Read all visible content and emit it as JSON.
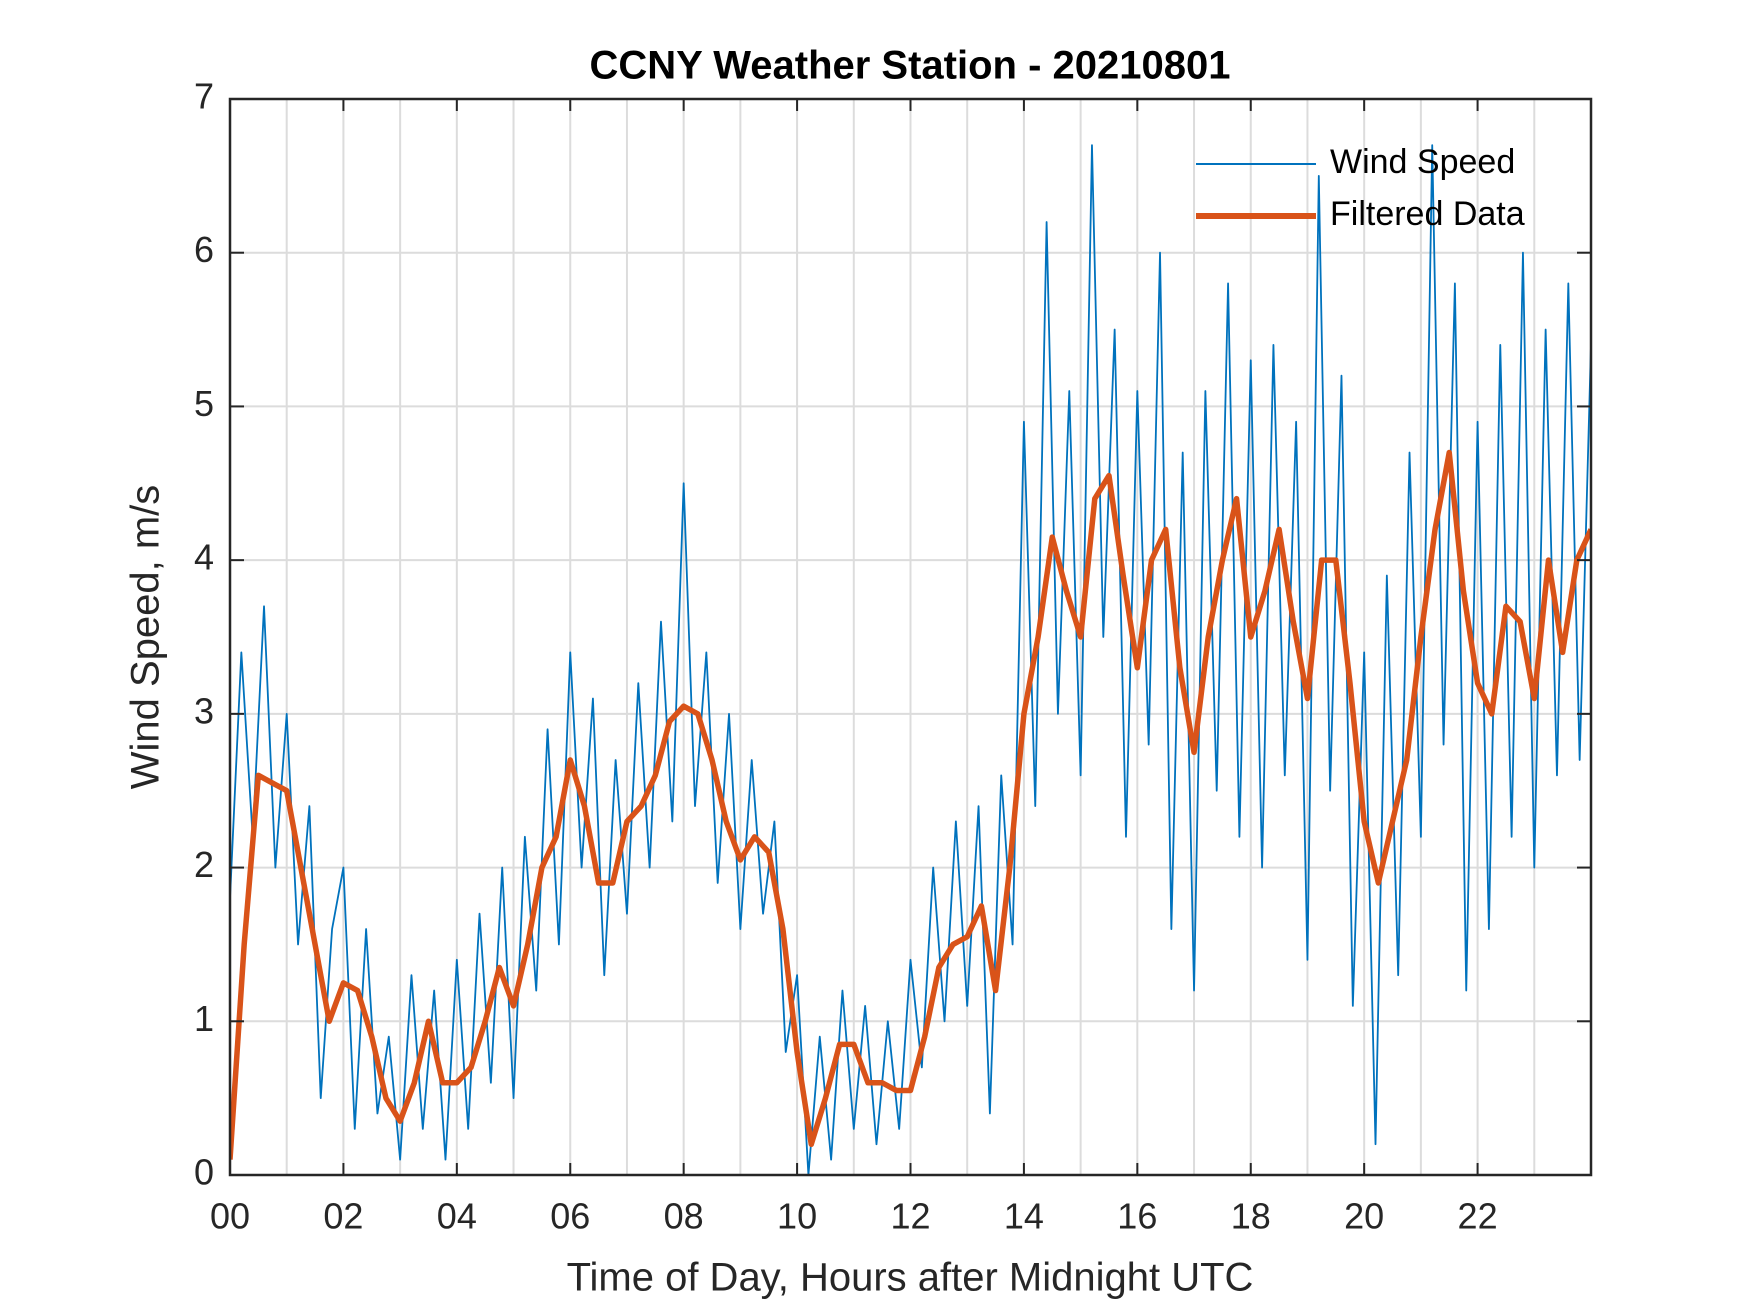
{
  "chart_data": {
    "type": "line",
    "title": "CCNY Weather Station - 20210801",
    "x_label": "Time of Day, Hours after Midnight UTC",
    "y_label": "Wind Speed, m/s",
    "xlim": [
      0,
      24
    ],
    "ylim": [
      0,
      7
    ],
    "xticks": [
      {
        "value": 0,
        "label": "00"
      },
      {
        "value": 2,
        "label": "02"
      },
      {
        "value": 4,
        "label": "04"
      },
      {
        "value": 6,
        "label": "06"
      },
      {
        "value": 8,
        "label": "08"
      },
      {
        "value": 10,
        "label": "10"
      },
      {
        "value": 12,
        "label": "12"
      },
      {
        "value": 14,
        "label": "14"
      },
      {
        "value": 16,
        "label": "16"
      },
      {
        "value": 18,
        "label": "18"
      },
      {
        "value": 20,
        "label": "20"
      },
      {
        "value": 22,
        "label": "22"
      }
    ],
    "xminorticks": [
      1,
      3,
      5,
      7,
      9,
      11,
      13,
      15,
      17,
      19,
      21,
      23
    ],
    "yticks": [
      0,
      1,
      2,
      3,
      4,
      5,
      6,
      7
    ],
    "grid": true,
    "legend_position": "northeast",
    "series": [
      {
        "name": "Wind Speed",
        "color": "#0072bd",
        "x": [
          0,
          0.2,
          0.4,
          0.6,
          0.8,
          1,
          1.2,
          1.4,
          1.6,
          1.8,
          2,
          2.2,
          2.4,
          2.6,
          2.8,
          3,
          3.2,
          3.4,
          3.6,
          3.8,
          4,
          4.2,
          4.4,
          4.6,
          4.8,
          5,
          5.2,
          5.4,
          5.6,
          5.8,
          6,
          6.2,
          6.4,
          6.6,
          6.8,
          7,
          7.2,
          7.4,
          7.6,
          7.8,
          8,
          8.2,
          8.4,
          8.6,
          8.8,
          9,
          9.2,
          9.4,
          9.6,
          9.8,
          10,
          10.2,
          10.4,
          10.6,
          10.8,
          11,
          11.2,
          11.4,
          11.6,
          11.8,
          12,
          12.2,
          12.4,
          12.6,
          12.8,
          13,
          13.2,
          13.4,
          13.6,
          13.8,
          14,
          14.2,
          14.4,
          14.6,
          14.8,
          15,
          15.2,
          15.4,
          15.6,
          15.8,
          16,
          16.2,
          16.4,
          16.6,
          16.8,
          17,
          17.2,
          17.4,
          17.6,
          17.8,
          18,
          18.2,
          18.4,
          18.6,
          18.8,
          19,
          19.2,
          19.4,
          19.6,
          19.8,
          20,
          20.2,
          20.4,
          20.6,
          20.8,
          21,
          21.2,
          21.4,
          21.6,
          21.8,
          22,
          22.2,
          22.4,
          22.6,
          22.8,
          23,
          23.2,
          23.4,
          23.6,
          23.8,
          24
        ],
        "values": [
          1.8,
          3.4,
          2.2,
          3.7,
          2.0,
          3.0,
          1.5,
          2.4,
          0.5,
          1.6,
          2.0,
          0.3,
          1.6,
          0.4,
          0.9,
          0.1,
          1.3,
          0.3,
          1.2,
          0.1,
          1.4,
          0.3,
          1.7,
          0.6,
          2.0,
          0.5,
          2.2,
          1.2,
          2.9,
          1.5,
          3.4,
          2.0,
          3.1,
          1.3,
          2.7,
          1.7,
          3.2,
          2.0,
          3.6,
          2.3,
          4.5,
          2.4,
          3.4,
          1.9,
          3.0,
          1.6,
          2.7,
          1.7,
          2.3,
          0.8,
          1.3,
          0.0,
          0.9,
          0.1,
          1.2,
          0.3,
          1.1,
          0.2,
          1.0,
          0.3,
          1.4,
          0.7,
          2.0,
          1.0,
          2.3,
          1.1,
          2.4,
          0.4,
          2.6,
          1.5,
          4.9,
          2.4,
          6.2,
          3.0,
          5.1,
          2.6,
          6.7,
          3.5,
          5.5,
          2.2,
          5.1,
          2.8,
          6.0,
          1.6,
          4.7,
          1.2,
          5.1,
          2.5,
          5.8,
          2.2,
          5.3,
          2.0,
          5.4,
          2.6,
          4.9,
          1.4,
          6.5,
          2.5,
          5.2,
          1.1,
          3.4,
          0.2,
          3.9,
          1.3,
          4.7,
          2.2,
          6.7,
          2.8,
          5.8,
          1.2,
          4.9,
          1.6,
          5.4,
          2.2,
          6.0,
          2.0,
          5.5,
          2.6,
          5.8,
          2.7,
          5.4
        ]
      },
      {
        "name": "Filtered Data",
        "color": "#d95319",
        "x": [
          0,
          0.25,
          0.5,
          0.75,
          1,
          1.25,
          1.5,
          1.75,
          2,
          2.25,
          2.5,
          2.75,
          3,
          3.25,
          3.5,
          3.75,
          4,
          4.25,
          4.5,
          4.75,
          5,
          5.25,
          5.5,
          5.75,
          6,
          6.25,
          6.5,
          6.75,
          7,
          7.25,
          7.5,
          7.75,
          8,
          8.25,
          8.5,
          8.75,
          9,
          9.25,
          9.5,
          9.75,
          10,
          10.25,
          10.5,
          10.75,
          11,
          11.25,
          11.5,
          11.75,
          12,
          12.25,
          12.5,
          12.75,
          13,
          13.25,
          13.5,
          13.75,
          14,
          14.25,
          14.5,
          14.75,
          15,
          15.25,
          15.5,
          15.75,
          16,
          16.25,
          16.5,
          16.75,
          17,
          17.25,
          17.5,
          17.75,
          18,
          18.25,
          18.5,
          18.75,
          19,
          19.25,
          19.5,
          19.75,
          20,
          20.25,
          20.5,
          20.75,
          21,
          21.25,
          21.5,
          21.75,
          22,
          22.25,
          22.5,
          22.75,
          23,
          23.25,
          23.5,
          23.75,
          24
        ],
        "values": [
          0.1,
          1.5,
          2.6,
          2.55,
          2.5,
          2.0,
          1.5,
          1.0,
          1.25,
          1.2,
          0.9,
          0.5,
          0.35,
          0.6,
          1.0,
          0.6,
          0.6,
          0.7,
          1.0,
          1.35,
          1.1,
          1.5,
          2.0,
          2.2,
          2.7,
          2.4,
          1.9,
          1.9,
          2.3,
          2.4,
          2.6,
          2.95,
          3.05,
          3.0,
          2.7,
          2.3,
          2.05,
          2.2,
          2.1,
          1.6,
          0.8,
          0.2,
          0.5,
          0.85,
          0.85,
          0.6,
          0.6,
          0.55,
          0.55,
          0.9,
          1.35,
          1.5,
          1.55,
          1.75,
          1.2,
          2.0,
          3.0,
          3.5,
          4.15,
          3.8,
          3.5,
          4.4,
          4.55,
          3.9,
          3.3,
          4.0,
          4.2,
          3.3,
          2.75,
          3.5,
          4.0,
          4.4,
          3.5,
          3.8,
          4.2,
          3.6,
          3.1,
          4.0,
          4.0,
          3.2,
          2.3,
          1.9,
          2.3,
          2.7,
          3.5,
          4.2,
          4.7,
          3.8,
          3.2,
          3.0,
          3.7,
          3.6,
          3.1,
          4.0,
          3.4,
          4.0,
          4.2
        ]
      }
    ]
  }
}
